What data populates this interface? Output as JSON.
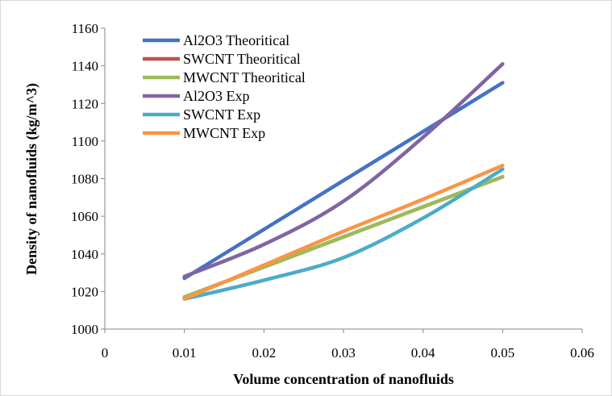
{
  "chart_data": {
    "type": "line",
    "title": "",
    "xlabel": "Volume concentration of nanofluids",
    "ylabel": "Density of nanofluids (kg/m^3)",
    "xlim": [
      0,
      0.06
    ],
    "ylim": [
      1000,
      1160
    ],
    "x_ticks": [
      "0",
      "0.01",
      "0.02",
      "0.03",
      "0.04",
      "0.05",
      "0.06"
    ],
    "y_ticks": [
      "1000",
      "1020",
      "1040",
      "1060",
      "1080",
      "1100",
      "1120",
      "1140",
      "1160"
    ],
    "grid": false,
    "legend_position": "top-left",
    "x": [
      0.01,
      0.02,
      0.03,
      0.04,
      0.05
    ],
    "series": [
      {
        "name": "Al2O3 Theoritical",
        "color": "#4472C4",
        "values": [
          1027,
          1053,
          1079,
          1105,
          1131
        ]
      },
      {
        "name": "SWCNT Theoritical",
        "color": "#C0504D",
        "values": [
          1017,
          1033,
          1049,
          1065,
          1081
        ]
      },
      {
        "name": "MWCNT Theoritical",
        "color": "#9BBB59",
        "values": [
          1017,
          1033,
          1049,
          1065,
          1081
        ]
      },
      {
        "name": "Al2O3 Exp",
        "color": "#8064A2",
        "values": [
          1028,
          1045,
          1068,
          1102,
          1141
        ]
      },
      {
        "name": "SWCNT Exp",
        "color": "#4BACC6",
        "values": [
          1016,
          1026,
          1038,
          1059,
          1085
        ]
      },
      {
        "name": "MWCNT Exp",
        "color": "#F79646",
        "values": [
          1016,
          1034,
          1052,
          1069,
          1087
        ]
      }
    ]
  }
}
